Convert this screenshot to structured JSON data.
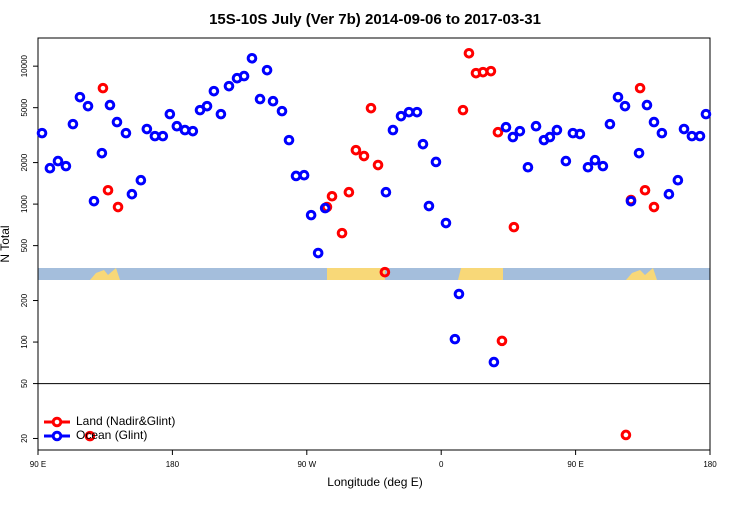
{
  "chart_data": {
    "type": "scatter",
    "title": "15S-10S July (Ver 7b)   2014-09-06 to 2017-03-31",
    "x_label": "Longitude (deg E)",
    "y_label": "N Total",
    "log_y": true,
    "legend": "bottomleft",
    "xlim": [
      90,
      540
    ],
    "xticks": [
      {
        "value": 90,
        "label": "90 E"
      },
      180,
      {
        "value": 270,
        "label": "90 W"
      },
      {
        "value": 360,
        "label": "0"
      },
      {
        "value": 450,
        "label": "90 E"
      },
      {
        "value": 540,
        "label": "180"
      }
    ],
    "ylim": [
      16.5,
      16000
    ],
    "yticks": [
      20,
      50,
      100,
      200,
      500,
      1000,
      2000,
      5000,
      10000
    ],
    "series": [
      {
        "name": "Land (Nadir&Glint)",
        "color": "#ff0000",
        "x": [
          124.8,
          133.5,
          136.9,
          143.6,
          283.5,
          286.9,
          293.6,
          298.2,
          302.9,
          308.3,
          313,
          317.7,
          322.3,
          374.6,
          378.6,
          383.3,
          388,
          393.3,
          398,
          400.7,
          408.7,
          483.7,
          487.1,
          493.2,
          496.5,
          502.5
        ],
        "values": [
          20.8,
          6930,
          1260,
          952,
          952,
          1140,
          616,
          1220,
          2460,
          2230,
          4960,
          1920,
          321,
          4800,
          12400,
          8900,
          9050,
          9200,
          3320,
          102,
          681,
          21.2,
          1070,
          6930,
          1260,
          952
        ]
      },
      {
        "name": "Ocean (Glint)",
        "color": "#0000ff",
        "x": [
          92.7,
          98,
          103.4,
          108.7,
          113.4,
          118.1,
          123.5,
          127.5,
          132.8,
          138.2,
          142.9,
          148.9,
          152.9,
          158.9,
          162.9,
          168.3,
          173.6,
          178.3,
          183,
          188.4,
          193.7,
          198.5,
          203.2,
          207.8,
          212.5,
          217.9,
          223.3,
          228,
          233.3,
          238.7,
          243.4,
          247.4,
          253.4,
          258.1,
          262.8,
          268.2,
          272.9,
          277.6,
          282.3,
          323,
          327.7,
          333.1,
          338.4,
          343.8,
          347.8,
          351.8,
          356.5,
          363.2,
          369.2,
          371.9,
          395.3,
          403.4,
          408,
          412.7,
          418.1,
          423.5,
          428.8,
          432.8,
          437.5,
          443.5,
          448.2,
          452.9,
          458.3,
          463,
          468.3,
          473,
          478.4,
          483.1,
          487.1,
          492.5,
          497.8,
          502.5,
          507.8,
          512.5,
          518.5,
          522.6,
          527.9,
          533.3,
          537.3
        ],
        "values": [
          3270,
          1820,
          2050,
          1885,
          3800,
          5960,
          5130,
          1050,
          2340,
          5220,
          3930,
          3270,
          1180,
          1490,
          3500,
          3110,
          3110,
          4490,
          3670,
          3440,
          3380,
          4800,
          5130,
          6590,
          4490,
          7160,
          8180,
          8470,
          11400,
          5770,
          9350,
          5570,
          4720,
          2910,
          1600,
          1620,
          832,
          442,
          936,
          1220,
          3440,
          4340,
          4640,
          4640,
          2720,
          968,
          2020,
          729,
          105,
          223,
          71.6,
          3610,
          3060,
          3380,
          1850,
          3670,
          2910,
          3060,
          3440,
          2050,
          3270,
          3220,
          1850,
          2080,
          1885,
          3800,
          5960,
          5130,
          1050,
          2340,
          5220,
          3930,
          3270,
          1180,
          1490,
          3500,
          3110,
          3110,
          4490
        ]
      }
    ]
  }
}
